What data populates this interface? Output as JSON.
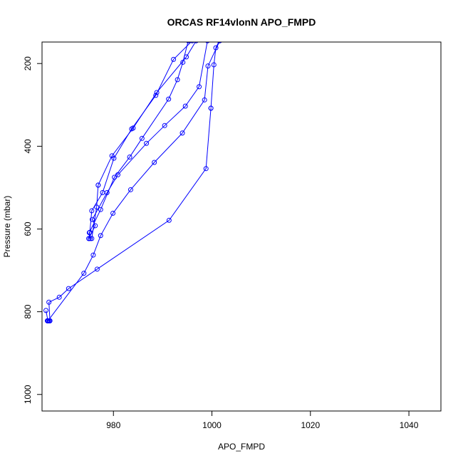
{
  "chart_data": {
    "type": "line",
    "title": "ORCAS RF14vlonN APO_FMPD",
    "xlabel": "APO_FMPD",
    "ylabel": "Pressure (mbar)",
    "xlim": [
      965.5,
      1046.5
    ],
    "ylim": [
      1040,
      148
    ],
    "y_reversed": true,
    "x_ticks": [
      980,
      1000,
      1020,
      1040
    ],
    "y_ticks": [
      200,
      400,
      600,
      800,
      1000
    ],
    "grid": false,
    "legend": "none",
    "series_color": "#0000ff",
    "series": [
      {
        "x": [
          966.6,
          966.6,
          966.6,
          966.8,
          967.0,
          967.1,
          967.1,
          966.9,
          969.0,
          970.9,
          976.7,
          991.3,
          998.8,
          999.8
        ],
        "y": [
          822,
          822,
          822,
          822,
          822,
          822,
          822,
          777,
          765,
          744,
          697,
          579,
          454,
          308
        ]
      },
      {
        "x": [
          999.8,
          1000.4,
          1000.8,
          1001.5
        ],
        "y": [
          308,
          203,
          162,
          145
        ]
      },
      {
        "x": [
          966.3,
          966.7,
          974.0,
          975.9,
          977.4,
          979.9,
          983.5,
          988.3,
          994.0,
          998.5,
          999.2,
          1001.6
        ],
        "y": [
          797,
          822,
          707,
          663,
          616,
          562,
          505,
          439,
          368,
          288,
          206,
          145
        ]
      },
      {
        "x": [
          975.0,
          976.3,
          975.7,
          978.7,
          980.9,
          986.7,
          990.4,
          994.6,
          997.4,
          999.1
        ],
        "y": [
          623,
          592,
          577,
          512,
          469,
          393,
          350,
          303,
          256,
          145
        ]
      },
      {
        "x": [
          975.3,
          975.1,
          977.4,
          980.2,
          983.3,
          985.8,
          991.2,
          993.0,
          994.1,
          995.2
        ],
        "y": [
          623,
          609,
          553,
          475,
          426,
          381,
          286,
          239,
          197,
          145
        ]
      },
      {
        "x": [
          975.0,
          975.2,
          975.6,
          977.8,
          980.1,
          983.7,
          988.6,
          992.2,
          996.0
        ],
        "y": [
          623,
          608,
          556,
          512,
          429,
          358,
          277,
          190,
          145
        ]
      },
      {
        "x": [
          975.6,
          976.6,
          976.9
        ],
        "y": [
          623,
          547,
          494
        ]
      },
      {
        "x": [
          976.9,
          979.7,
          984.0,
          988.8,
          994.8,
          996.8
        ],
        "y": [
          494,
          423,
          356,
          270,
          184,
          145
        ]
      }
    ]
  }
}
